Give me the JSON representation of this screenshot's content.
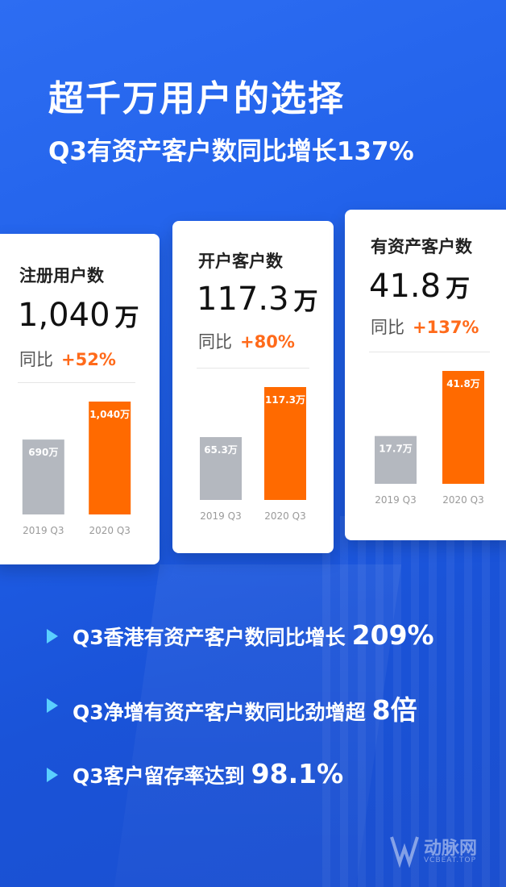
{
  "title": "超千万用户的选择",
  "subtitle": "Q3有资产客户数同比增长137%",
  "yoy_label": "同比",
  "chart_data": [
    {
      "type": "bar",
      "title": "注册用户数",
      "headline_value": "1,040",
      "headline_unit": "万",
      "yoy": "+52%",
      "categories": [
        "2019 Q3",
        "2020 Q3"
      ],
      "values": [
        690,
        1040
      ],
      "data_labels": [
        "690万",
        "1,040万"
      ],
      "colors": [
        "#b4b8bf",
        "#ff6a00"
      ]
    },
    {
      "type": "bar",
      "title": "开户客户数",
      "headline_value": "117.3",
      "headline_unit": "万",
      "yoy": "+80%",
      "categories": [
        "2019 Q3",
        "2020 Q3"
      ],
      "values": [
        65.3,
        117.3
      ],
      "data_labels": [
        "65.3万",
        "117.3万"
      ],
      "colors": [
        "#b4b8bf",
        "#ff6a00"
      ]
    },
    {
      "type": "bar",
      "title": "有资产客户数",
      "headline_value": "41.8",
      "headline_unit": "万",
      "yoy": "+137%",
      "categories": [
        "2019 Q3",
        "2020 Q3"
      ],
      "values": [
        17.7,
        41.8
      ],
      "data_labels": [
        "17.7万",
        "41.8万"
      ],
      "colors": [
        "#b4b8bf",
        "#ff6a00"
      ]
    }
  ],
  "bullets": [
    {
      "text": "Q3香港有资产客户数同比增长",
      "highlight": "209%"
    },
    {
      "text": "Q3净增有资产客户数同比劲增超",
      "highlight": "8倍"
    },
    {
      "text": "Q3客户留存率达到",
      "highlight": "98.1%"
    }
  ],
  "watermark": {
    "name": "动脉网",
    "sub": "VCBEAT.TOP"
  },
  "colors": {
    "background": "#1f5fe8",
    "accent_orange": "#ff6a00",
    "bar_gray": "#b4b8bf",
    "bullet_marker": "#5ad0ff"
  }
}
